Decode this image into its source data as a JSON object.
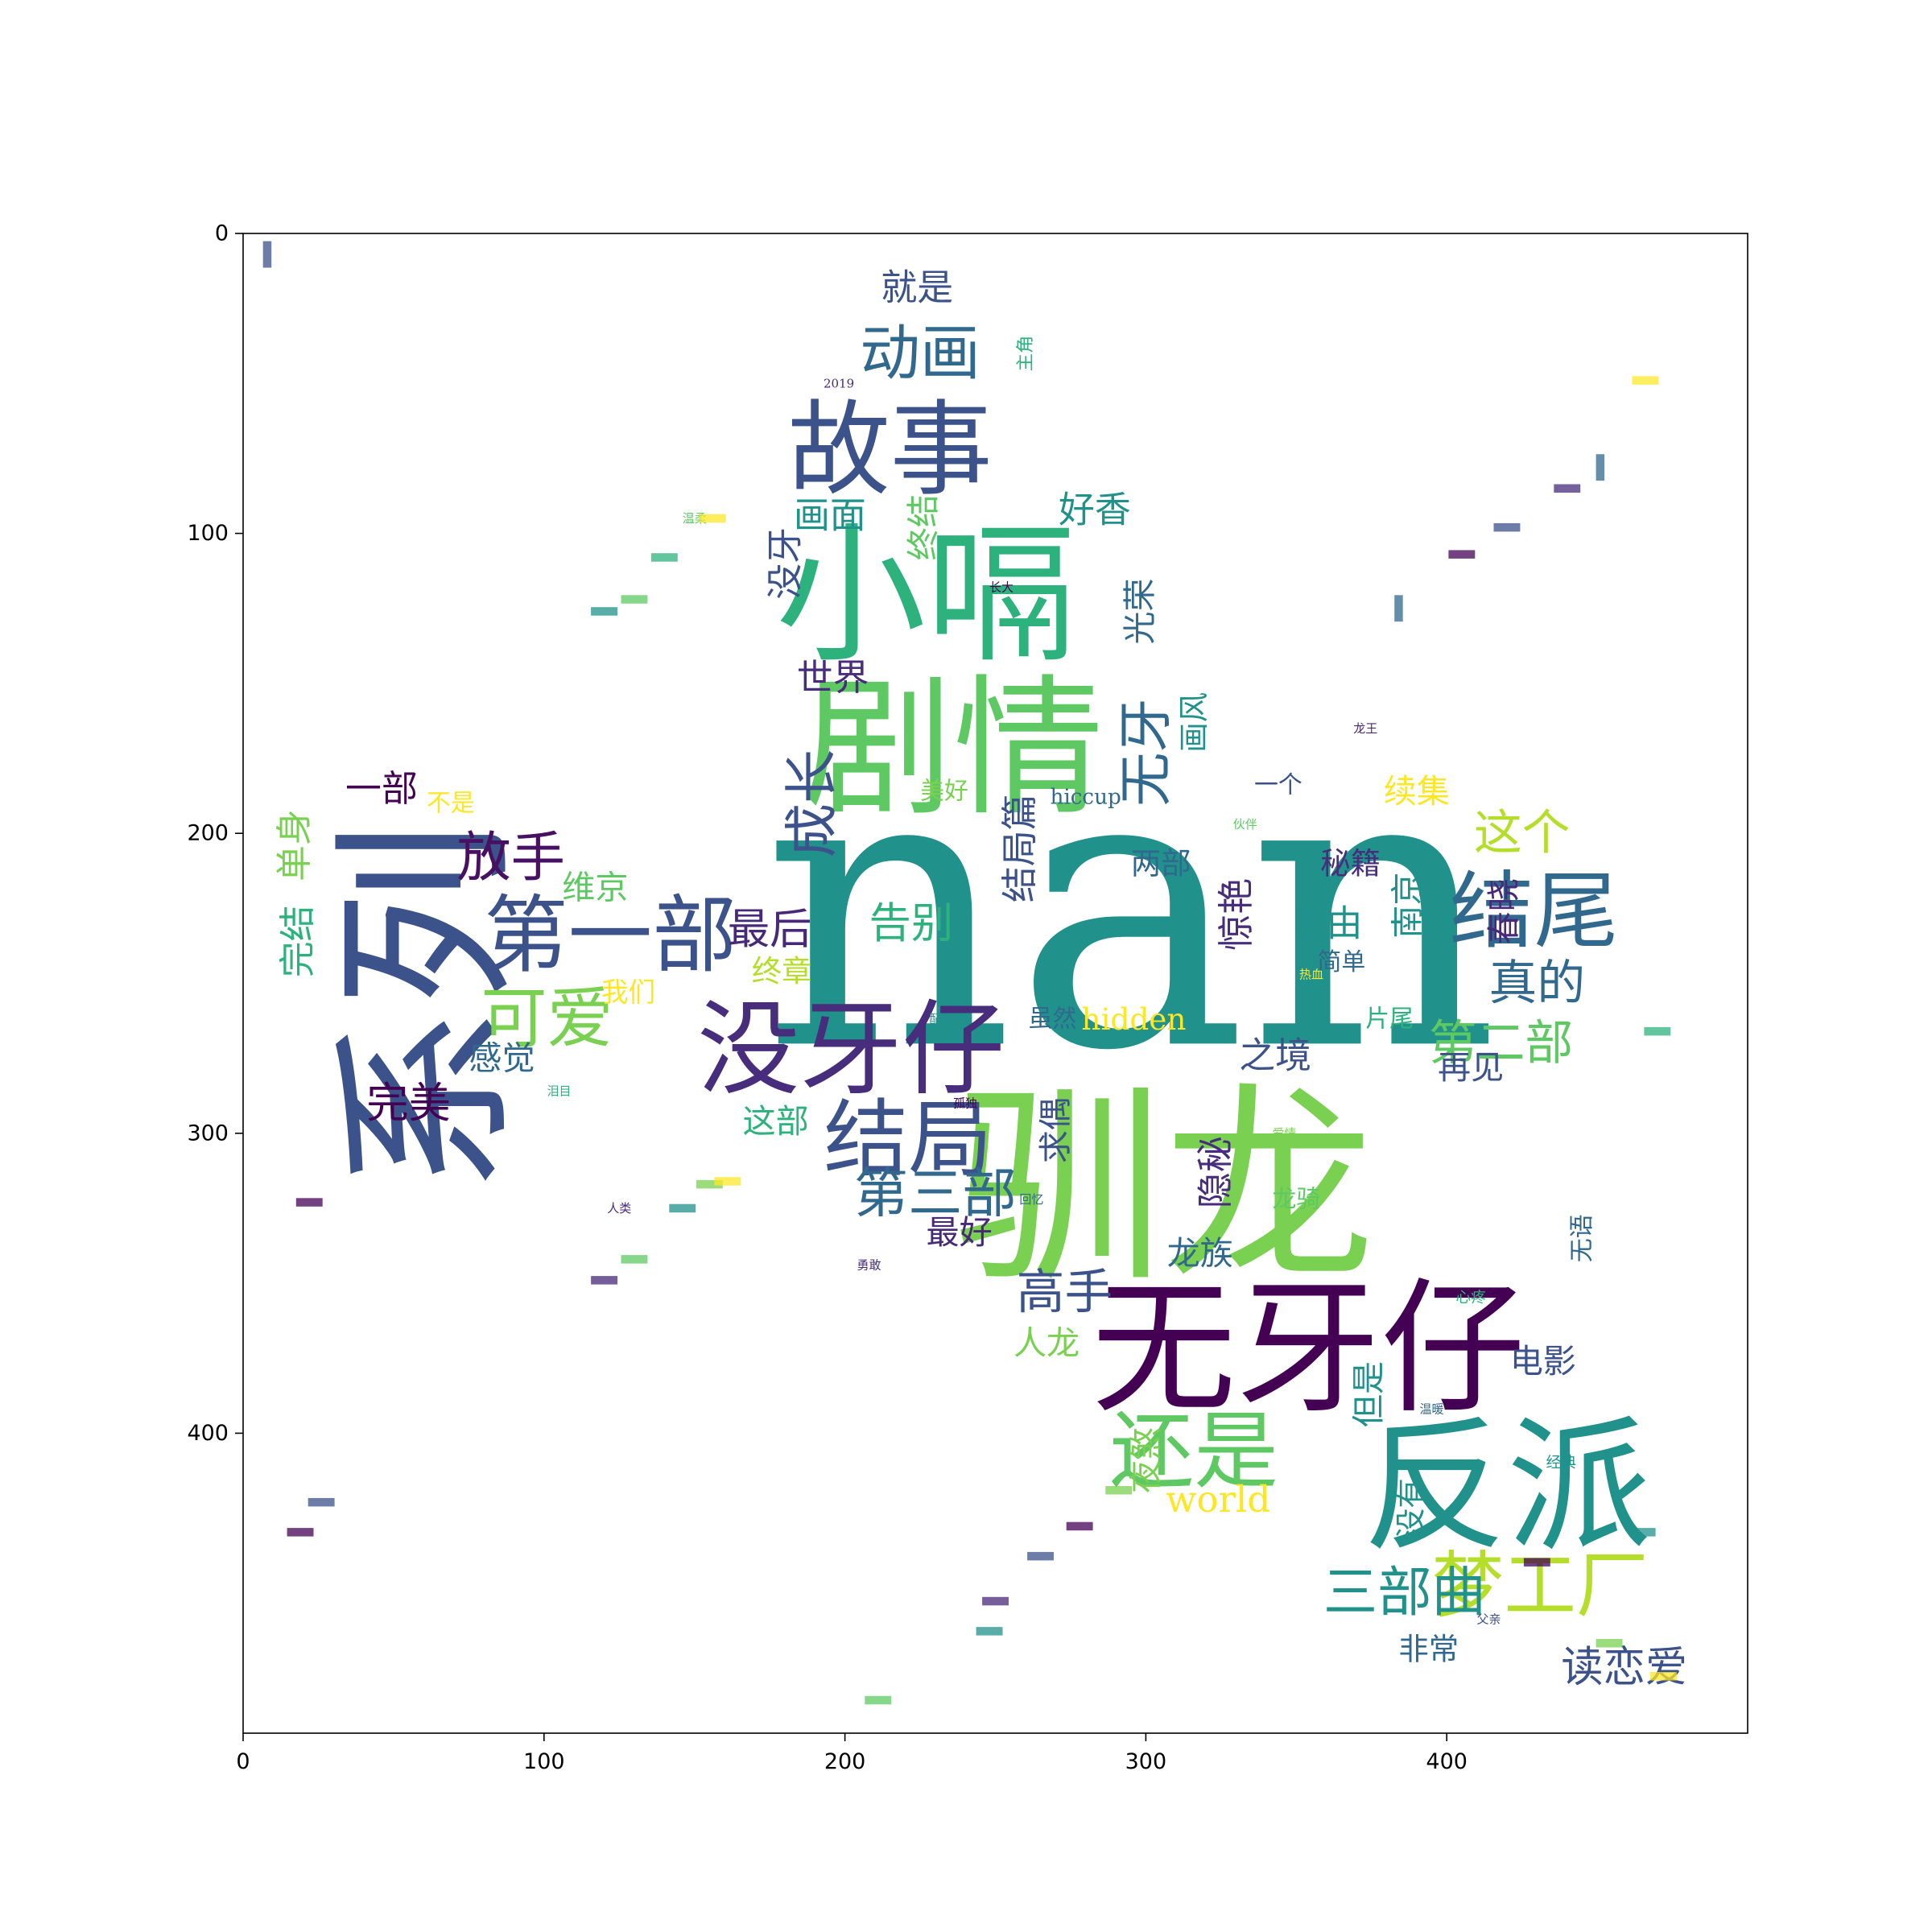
{
  "chart_data": {
    "type": "wordcloud",
    "title": "",
    "xlabel": "",
    "ylabel": "",
    "xlim": [
      0,
      500
    ],
    "ylim": [
      500,
      0
    ],
    "grid": false,
    "x_ticks": [
      "0",
      "100",
      "200",
      "300",
      "400"
    ],
    "y_ticks": [
      "0",
      "100",
      "200",
      "300",
      "400"
    ],
    "colormap": "viridis",
    "words": [
      {
        "text": "nan",
        "x": 295,
        "y": 225,
        "size": 130,
        "rotate": 0,
        "color": "#21918c"
      },
      {
        "text": "驯龙",
        "x": 306,
        "y": 318,
        "size": 70,
        "rotate": 0,
        "color": "#7ad151"
      },
      {
        "text": "系列",
        "x": 61,
        "y": 258,
        "size": 62,
        "rotate": 90,
        "color": "#3b528b"
      },
      {
        "text": "小嗝",
        "x": 227,
        "y": 121,
        "size": 50,
        "rotate": 0,
        "color": "#2db27d"
      },
      {
        "text": "剧情",
        "x": 236,
        "y": 172,
        "size": 50,
        "rotate": 0,
        "color": "#5ec962"
      },
      {
        "text": "无牙仔",
        "x": 354,
        "y": 372,
        "size": 48,
        "rotate": 0,
        "color": "#440154"
      },
      {
        "text": "反派",
        "x": 420,
        "y": 418,
        "size": 48,
        "rotate": 0,
        "color": "#21918c"
      },
      {
        "text": "故事",
        "x": 215,
        "y": 72,
        "size": 34,
        "rotate": 0,
        "color": "#3b528b"
      },
      {
        "text": "没牙仔",
        "x": 202,
        "y": 272,
        "size": 34,
        "rotate": 0,
        "color": "#472d7b"
      },
      {
        "text": "第一部",
        "x": 122,
        "y": 234,
        "size": 28,
        "rotate": 0,
        "color": "#3b528b"
      },
      {
        "text": "结尾",
        "x": 429,
        "y": 226,
        "size": 28,
        "rotate": 0,
        "color": "#31688e"
      },
      {
        "text": "还是",
        "x": 316,
        "y": 406,
        "size": 28,
        "rotate": 0,
        "color": "#5ec962"
      },
      {
        "text": "结局",
        "x": 221,
        "y": 302,
        "size": 28,
        "rotate": 0,
        "color": "#3b528b"
      },
      {
        "text": "梦工厂",
        "x": 431,
        "y": 451,
        "size": 24,
        "rotate": 0,
        "color": "#b5de2b"
      },
      {
        "text": "可爱",
        "x": 101,
        "y": 262,
        "size": 22,
        "rotate": 0,
        "color": "#7ad151"
      },
      {
        "text": "动画",
        "x": 225,
        "y": 40,
        "size": 20,
        "rotate": 0,
        "color": "#31688e"
      },
      {
        "text": "放手",
        "x": 89,
        "y": 208,
        "size": 18,
        "rotate": 0,
        "color": "#471063"
      },
      {
        "text": "第三部",
        "x": 230,
        "y": 320,
        "size": 18,
        "rotate": 0,
        "color": "#31688e"
      },
      {
        "text": "三部曲",
        "x": 386,
        "y": 453,
        "size": 18,
        "rotate": 0,
        "color": "#21918c"
      },
      {
        "text": "真的",
        "x": 430,
        "y": 250,
        "size": 16,
        "rotate": 0,
        "color": "#31688e"
      },
      {
        "text": "这个",
        "x": 425,
        "y": 200,
        "size": 16,
        "rotate": 0,
        "color": "#b5de2b"
      },
      {
        "text": "第二部",
        "x": 418,
        "y": 270,
        "size": 16,
        "rotate": 0,
        "color": "#5ec962"
      },
      {
        "text": "高手",
        "x": 273,
        "y": 353,
        "size": 16,
        "rotate": 0,
        "color": "#3b528b"
      },
      {
        "text": "成长",
        "x": 189,
        "y": 190,
        "size": 18,
        "rotate": 90,
        "color": "#3b528b"
      },
      {
        "text": "无牙",
        "x": 300,
        "y": 173,
        "size": 18,
        "rotate": 90,
        "color": "#31688e"
      },
      {
        "text": "读恋爱",
        "x": 459,
        "y": 478,
        "size": 14,
        "rotate": 0,
        "color": "#3b528b"
      },
      {
        "text": "最后",
        "x": 175,
        "y": 232,
        "size": 14,
        "rotate": 0,
        "color": "#482878"
      },
      {
        "text": "告别",
        "x": 222,
        "y": 230,
        "size": 14,
        "rotate": 0,
        "color": "#2db27d"
      },
      {
        "text": "完美",
        "x": 55,
        "y": 290,
        "size": 14,
        "rotate": 0,
        "color": "#440154"
      },
      {
        "text": "就是",
        "x": 224,
        "y": 18,
        "size": 12,
        "rotate": 0,
        "color": "#3b528b"
      },
      {
        "text": "画面",
        "x": 195,
        "y": 94,
        "size": 12,
        "rotate": 0,
        "color": "#21918c"
      },
      {
        "text": "好香",
        "x": 283,
        "y": 92,
        "size": 12,
        "rotate": 0,
        "color": "#21918c"
      },
      {
        "text": "hidden",
        "x": 296,
        "y": 262,
        "size": 10,
        "rotate": 0,
        "color": "#fde725"
      },
      {
        "text": "world",
        "x": 324,
        "y": 422,
        "size": 12,
        "rotate": 0,
        "color": "#fde725"
      },
      {
        "text": "自由",
        "x": 360,
        "y": 230,
        "size": 12,
        "rotate": 0,
        "color": "#21918c"
      },
      {
        "text": "之境",
        "x": 343,
        "y": 274,
        "size": 12,
        "rotate": 0,
        "color": "#3b528b"
      },
      {
        "text": "再见",
        "x": 408,
        "y": 278,
        "size": 11,
        "rotate": 0,
        "color": "#3b528b"
      },
      {
        "text": "电影",
        "x": 432,
        "y": 376,
        "size": 11,
        "rotate": 0,
        "color": "#3b528b"
      },
      {
        "text": "人龙",
        "x": 267,
        "y": 370,
        "size": 11,
        "rotate": 0,
        "color": "#7ad151"
      },
      {
        "text": "龙族",
        "x": 318,
        "y": 340,
        "size": 11,
        "rotate": 0,
        "color": "#31688e"
      },
      {
        "text": "维京",
        "x": 117,
        "y": 218,
        "size": 11,
        "rotate": 0,
        "color": "#5ec962"
      },
      {
        "text": "续集",
        "x": 390,
        "y": 186,
        "size": 11,
        "rotate": 0,
        "color": "#fde725"
      },
      {
        "text": "感觉",
        "x": 86,
        "y": 275,
        "size": 11,
        "rotate": 0,
        "color": "#31688e"
      },
      {
        "text": "最好",
        "x": 238,
        "y": 333,
        "size": 11,
        "rotate": 0,
        "color": "#482878"
      },
      {
        "text": "非常",
        "x": 394,
        "y": 472,
        "size": 10,
        "rotate": 0,
        "color": "#31688e"
      },
      {
        "text": "这部",
        "x": 177,
        "y": 296,
        "size": 11,
        "rotate": 0,
        "color": "#2db27d"
      },
      {
        "text": "两部",
        "x": 305,
        "y": 210,
        "size": 10,
        "rotate": 0,
        "color": "#31688e"
      },
      {
        "text": "秘籍",
        "x": 368,
        "y": 210,
        "size": 10,
        "rotate": 0,
        "color": "#472d7b"
      },
      {
        "text": "世界",
        "x": 196,
        "y": 148,
        "size": 12,
        "rotate": 0,
        "color": "#472d7b"
      },
      {
        "text": "我们",
        "x": 128,
        "y": 253,
        "size": 9,
        "rotate": 0,
        "color": "#fde725"
      },
      {
        "text": "不是",
        "x": 69,
        "y": 190,
        "size": 8,
        "rotate": 0,
        "color": "#fde725"
      },
      {
        "text": "美好",
        "x": 233,
        "y": 186,
        "size": 8,
        "rotate": 0,
        "color": "#7ad151"
      },
      {
        "text": "简单",
        "x": 365,
        "y": 243,
        "size": 8,
        "rotate": 0,
        "color": "#31688e"
      },
      {
        "text": "片尾",
        "x": 381,
        "y": 262,
        "size": 8,
        "rotate": 0,
        "color": "#2db27d"
      },
      {
        "text": "虽然",
        "x": 269,
        "y": 262,
        "size": 8,
        "rotate": 0,
        "color": "#31688e"
      },
      {
        "text": "一部",
        "x": 46,
        "y": 185,
        "size": 12,
        "rotate": 0,
        "color": "#440154"
      },
      {
        "text": "一个",
        "x": 344,
        "y": 184,
        "size": 8,
        "rotate": 0,
        "color": "#3b528b"
      },
      {
        "text": "结局篇",
        "x": 258,
        "y": 205,
        "size": 12,
        "rotate": 90,
        "color": "#3b528b"
      },
      {
        "text": "完结",
        "x": 18,
        "y": 236,
        "size": 12,
        "rotate": 90,
        "color": "#2db27d"
      },
      {
        "text": "单身",
        "x": 17,
        "y": 204,
        "size": 12,
        "rotate": 90,
        "color": "#7ad151"
      },
      {
        "text": "没牙",
        "x": 180,
        "y": 110,
        "size": 12,
        "rotate": 90,
        "color": "#3b528b"
      },
      {
        "text": "终结",
        "x": 226,
        "y": 98,
        "size": 11,
        "rotate": 90,
        "color": "#5ec962"
      },
      {
        "text": "光荣",
        "x": 298,
        "y": 126,
        "size": 11,
        "rotate": 90,
        "color": "#31688e"
      },
      {
        "text": "惊艳",
        "x": 330,
        "y": 227,
        "size": 12,
        "rotate": 90,
        "color": "#472d7b"
      },
      {
        "text": "南京",
        "x": 387,
        "y": 224,
        "size": 11,
        "rotate": 90,
        "color": "#21918c"
      },
      {
        "text": "春晓",
        "x": 419,
        "y": 226,
        "size": 11,
        "rotate": 90,
        "color": "#482878"
      },
      {
        "text": "隐秘",
        "x": 323,
        "y": 313,
        "size": 12,
        "rotate": 90,
        "color": "#472d7b"
      },
      {
        "text": "求偶",
        "x": 270,
        "y": 299,
        "size": 11,
        "rotate": 90,
        "color": "#3b528b"
      },
      {
        "text": "但是",
        "x": 374,
        "y": 387,
        "size": 11,
        "rotate": 90,
        "color": "#21918c"
      },
      {
        "text": "夜煞",
        "x": 300,
        "y": 409,
        "size": 11,
        "rotate": 90,
        "color": "#7ad151"
      },
      {
        "text": "没有",
        "x": 388,
        "y": 425,
        "size": 10,
        "rotate": 90,
        "color": "#21918c"
      },
      {
        "text": "终章",
        "x": 179,
        "y": 246,
        "size": 10,
        "rotate": 0,
        "color": "#b5de2b"
      },
      {
        "text": "画风",
        "x": 316,
        "y": 163,
        "size": 10,
        "rotate": 90,
        "color": "#21918c"
      },
      {
        "text": "hiccup",
        "x": 280,
        "y": 188,
        "size": 7,
        "rotate": 0,
        "color": "#31688e"
      },
      {
        "text": "2019",
        "x": 198,
        "y": 50,
        "size": 4,
        "rotate": 0,
        "color": "#482878"
      },
      {
        "text": "主角",
        "x": 260,
        "y": 40,
        "size": 6,
        "rotate": 90,
        "color": "#2db27d"
      },
      {
        "text": "龙骑",
        "x": 350,
        "y": 322,
        "size": 8,
        "rotate": 0,
        "color": "#5ec962"
      },
      {
        "text": "无语",
        "x": 445,
        "y": 335,
        "size": 8,
        "rotate": 90,
        "color": "#31688e"
      },
      {
        "text": "心疼",
        "x": 408,
        "y": 355,
        "size": 5,
        "rotate": 0,
        "color": "#2db27d"
      },
      {
        "text": "经典",
        "x": 438,
        "y": 410,
        "size": 5,
        "rotate": 0,
        "color": "#21918c"
      },
      {
        "text": "人类",
        "x": 125,
        "y": 325,
        "size": 4,
        "rotate": 0,
        "color": "#482878"
      },
      {
        "text": "温柔",
        "x": 150,
        "y": 95,
        "size": 4,
        "rotate": 0,
        "color": "#5ec962"
      },
      {
        "text": "孤独",
        "x": 240,
        "y": 290,
        "size": 4,
        "rotate": 0,
        "color": "#440154"
      },
      {
        "text": "回忆",
        "x": 262,
        "y": 322,
        "size": 4,
        "rotate": 0,
        "color": "#31688e"
      },
      {
        "text": "爱情",
        "x": 346,
        "y": 300,
        "size": 4,
        "rotate": 0,
        "color": "#7ad151"
      },
      {
        "text": "勇敢",
        "x": 208,
        "y": 344,
        "size": 4,
        "rotate": 0,
        "color": "#472d7b"
      },
      {
        "text": "热血",
        "x": 355,
        "y": 247,
        "size": 4,
        "rotate": 0,
        "color": "#fde725"
      },
      {
        "text": "泪目",
        "x": 105,
        "y": 286,
        "size": 4,
        "rotate": 0,
        "color": "#2db27d"
      },
      {
        "text": "父亲",
        "x": 414,
        "y": 462,
        "size": 4,
        "rotate": 0,
        "color": "#3b528b"
      },
      {
        "text": "配乐",
        "x": 232,
        "y": 262,
        "size": 4,
        "rotate": 0,
        "color": "#21918c"
      },
      {
        "text": "龙王",
        "x": 373,
        "y": 165,
        "size": 4,
        "rotate": 0,
        "color": "#482878"
      },
      {
        "text": "伙伴",
        "x": 333,
        "y": 197,
        "size": 4,
        "rotate": 0,
        "color": "#5ec962"
      },
      {
        "text": "长大",
        "x": 252,
        "y": 118,
        "size": 4,
        "rotate": 0,
        "color": "#440154"
      },
      {
        "text": "温暖",
        "x": 395,
        "y": 392,
        "size": 4,
        "rotate": 0,
        "color": "#31688e"
      }
    ],
    "decoy_words": [
      {
        "x": 8,
        "y": 7,
        "size": 4,
        "rotate": 90,
        "color": "#3b528b"
      },
      {
        "x": 466,
        "y": 49,
        "size": 4,
        "rotate": 0,
        "color": "#fde725"
      },
      {
        "x": 451,
        "y": 78,
        "size": 4,
        "rotate": 90,
        "color": "#31688e"
      },
      {
        "x": 440,
        "y": 85,
        "size": 4,
        "rotate": 0,
        "color": "#472d7b"
      },
      {
        "x": 420,
        "y": 98,
        "size": 4,
        "rotate": 0,
        "color": "#3b528b"
      },
      {
        "x": 405,
        "y": 107,
        "size": 4,
        "rotate": 0,
        "color": "#440154"
      },
      {
        "x": 384,
        "y": 125,
        "size": 4,
        "rotate": 90,
        "color": "#31688e"
      },
      {
        "x": 140,
        "y": 108,
        "size": 4,
        "rotate": 0,
        "color": "#2db27d"
      },
      {
        "x": 120,
        "y": 126,
        "size": 4,
        "rotate": 0,
        "color": "#21918c"
      },
      {
        "x": 130,
        "y": 122,
        "size": 4,
        "rotate": 0,
        "color": "#5ec962"
      },
      {
        "x": 156,
        "y": 95,
        "size": 4,
        "rotate": 0,
        "color": "#fde725"
      },
      {
        "x": 22,
        "y": 323,
        "size": 4,
        "rotate": 0,
        "color": "#440154"
      },
      {
        "x": 120,
        "y": 349,
        "size": 4,
        "rotate": 0,
        "color": "#482878"
      },
      {
        "x": 130,
        "y": 342,
        "size": 4,
        "rotate": 0,
        "color": "#5ec962"
      },
      {
        "x": 146,
        "y": 325,
        "size": 4,
        "rotate": 0,
        "color": "#21918c"
      },
      {
        "x": 155,
        "y": 317,
        "size": 4,
        "rotate": 0,
        "color": "#7ad151"
      },
      {
        "x": 161,
        "y": 316,
        "size": 4,
        "rotate": 0,
        "color": "#fde725"
      },
      {
        "x": 26,
        "y": 423,
        "size": 4,
        "rotate": 0,
        "color": "#3b528b"
      },
      {
        "x": 19,
        "y": 433,
        "size": 4,
        "rotate": 0,
        "color": "#440154"
      },
      {
        "x": 211,
        "y": 489,
        "size": 4,
        "rotate": 0,
        "color": "#5ec962"
      },
      {
        "x": 250,
        "y": 456,
        "size": 4,
        "rotate": 0,
        "color": "#482878"
      },
      {
        "x": 248,
        "y": 466,
        "size": 4,
        "rotate": 0,
        "color": "#21918c"
      },
      {
        "x": 265,
        "y": 441,
        "size": 4,
        "rotate": 0,
        "color": "#3b528b"
      },
      {
        "x": 278,
        "y": 431,
        "size": 4,
        "rotate": 0,
        "color": "#440154"
      },
      {
        "x": 291,
        "y": 419,
        "size": 4,
        "rotate": 0,
        "color": "#7ad151"
      },
      {
        "x": 470,
        "y": 266,
        "size": 4,
        "rotate": 0,
        "color": "#2db27d"
      },
      {
        "x": 472,
        "y": 481,
        "size": 4,
        "rotate": 0,
        "color": "#fde725"
      },
      {
        "x": 465,
        "y": 433,
        "size": 4,
        "rotate": 0,
        "color": "#21918c"
      },
      {
        "x": 430,
        "y": 443,
        "size": 4,
        "rotate": 0,
        "color": "#440154"
      },
      {
        "x": 454,
        "y": 470,
        "size": 4,
        "rotate": 0,
        "color": "#7ad151"
      }
    ]
  }
}
